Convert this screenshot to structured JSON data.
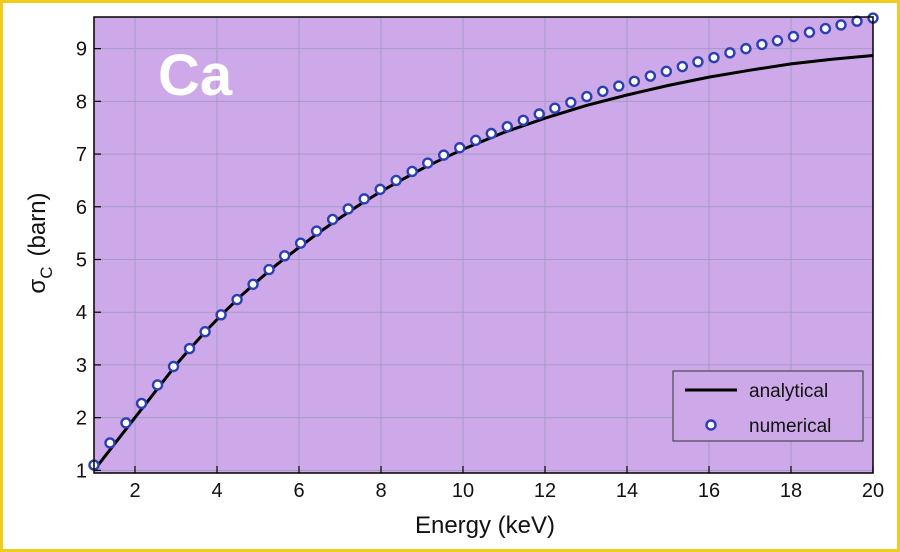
{
  "chart_data": {
    "type": "line",
    "title": "",
    "annotation": "Ca",
    "xlabel": "Energy  (keV)",
    "ylabel_main": "σ",
    "ylabel_sub": "C",
    "ylabel_unit": "(barn)",
    "xlim": [
      1,
      20
    ],
    "ylim": [
      0.95,
      9.6
    ],
    "xticks": [
      2,
      4,
      6,
      8,
      10,
      12,
      14,
      16,
      18,
      20
    ],
    "yticks": [
      1,
      2,
      3,
      4,
      5,
      6,
      7,
      8,
      9
    ],
    "grid": true,
    "legend_position": "bottom-right",
    "colors": {
      "plot_background": "#cda9e9",
      "grid": "#a59ac6",
      "analytical_line": "#000000",
      "numerical_marker_fill": "#ffffff",
      "numerical_marker_edge": "#2b3fb2",
      "border": "#f2cc1b"
    },
    "series": [
      {
        "name": "analytical",
        "style": "line",
        "x": [
          1.0,
          1.2,
          1.4,
          1.6,
          1.8,
          2.0,
          2.2,
          2.4,
          2.6,
          2.8,
          3.0,
          3.2,
          3.4,
          3.6,
          3.8,
          4.0,
          4.2,
          4.4,
          4.6,
          4.8,
          5.0,
          5.25,
          5.5,
          5.75,
          6.0,
          6.5,
          7.0,
          7.5,
          8.0,
          8.5,
          9.0,
          9.5,
          10.0,
          11.0,
          12.0,
          13.0,
          14.0,
          15.0,
          16.0,
          17.0,
          18.0,
          19.0,
          20.0
        ],
        "y": [
          1.0,
          1.2,
          1.4,
          1.6,
          1.8,
          2.0,
          2.2,
          2.4,
          2.6,
          2.8,
          3.0,
          3.18,
          3.36,
          3.53,
          3.7,
          3.86,
          4.02,
          4.17,
          4.32,
          4.46,
          4.6,
          4.77,
          4.93,
          5.08,
          5.23,
          5.52,
          5.79,
          6.05,
          6.29,
          6.51,
          6.72,
          6.91,
          7.09,
          7.41,
          7.68,
          7.92,
          8.12,
          8.3,
          8.46,
          8.59,
          8.71,
          8.8,
          8.87
        ]
      },
      {
        "name": "numerical",
        "style": "marker",
        "x": [
          1.0,
          1.39,
          1.78,
          2.16,
          2.55,
          2.94,
          3.33,
          3.71,
          4.1,
          4.49,
          4.88,
          5.27,
          5.65,
          6.04,
          6.43,
          6.82,
          7.2,
          7.59,
          7.98,
          8.37,
          8.76,
          9.14,
          9.53,
          9.92,
          10.31,
          10.69,
          11.08,
          11.47,
          11.86,
          12.24,
          12.63,
          13.02,
          13.41,
          13.8,
          14.18,
          14.57,
          14.96,
          15.35,
          15.73,
          16.12,
          16.51,
          16.9,
          17.29,
          17.67,
          18.06,
          18.45,
          18.84,
          19.22,
          19.61,
          20.0
        ],
        "y": [
          1.1,
          1.52,
          1.9,
          2.27,
          2.62,
          2.97,
          3.31,
          3.63,
          3.95,
          4.24,
          4.53,
          4.81,
          5.07,
          5.31,
          5.54,
          5.76,
          5.96,
          6.15,
          6.33,
          6.5,
          6.67,
          6.83,
          6.98,
          7.12,
          7.26,
          7.39,
          7.52,
          7.64,
          7.76,
          7.87,
          7.98,
          8.09,
          8.19,
          8.29,
          8.38,
          8.48,
          8.57,
          8.66,
          8.75,
          8.83,
          8.92,
          9.0,
          9.08,
          9.15,
          9.23,
          9.31,
          9.38,
          9.45,
          9.52,
          9.58
        ]
      }
    ]
  }
}
